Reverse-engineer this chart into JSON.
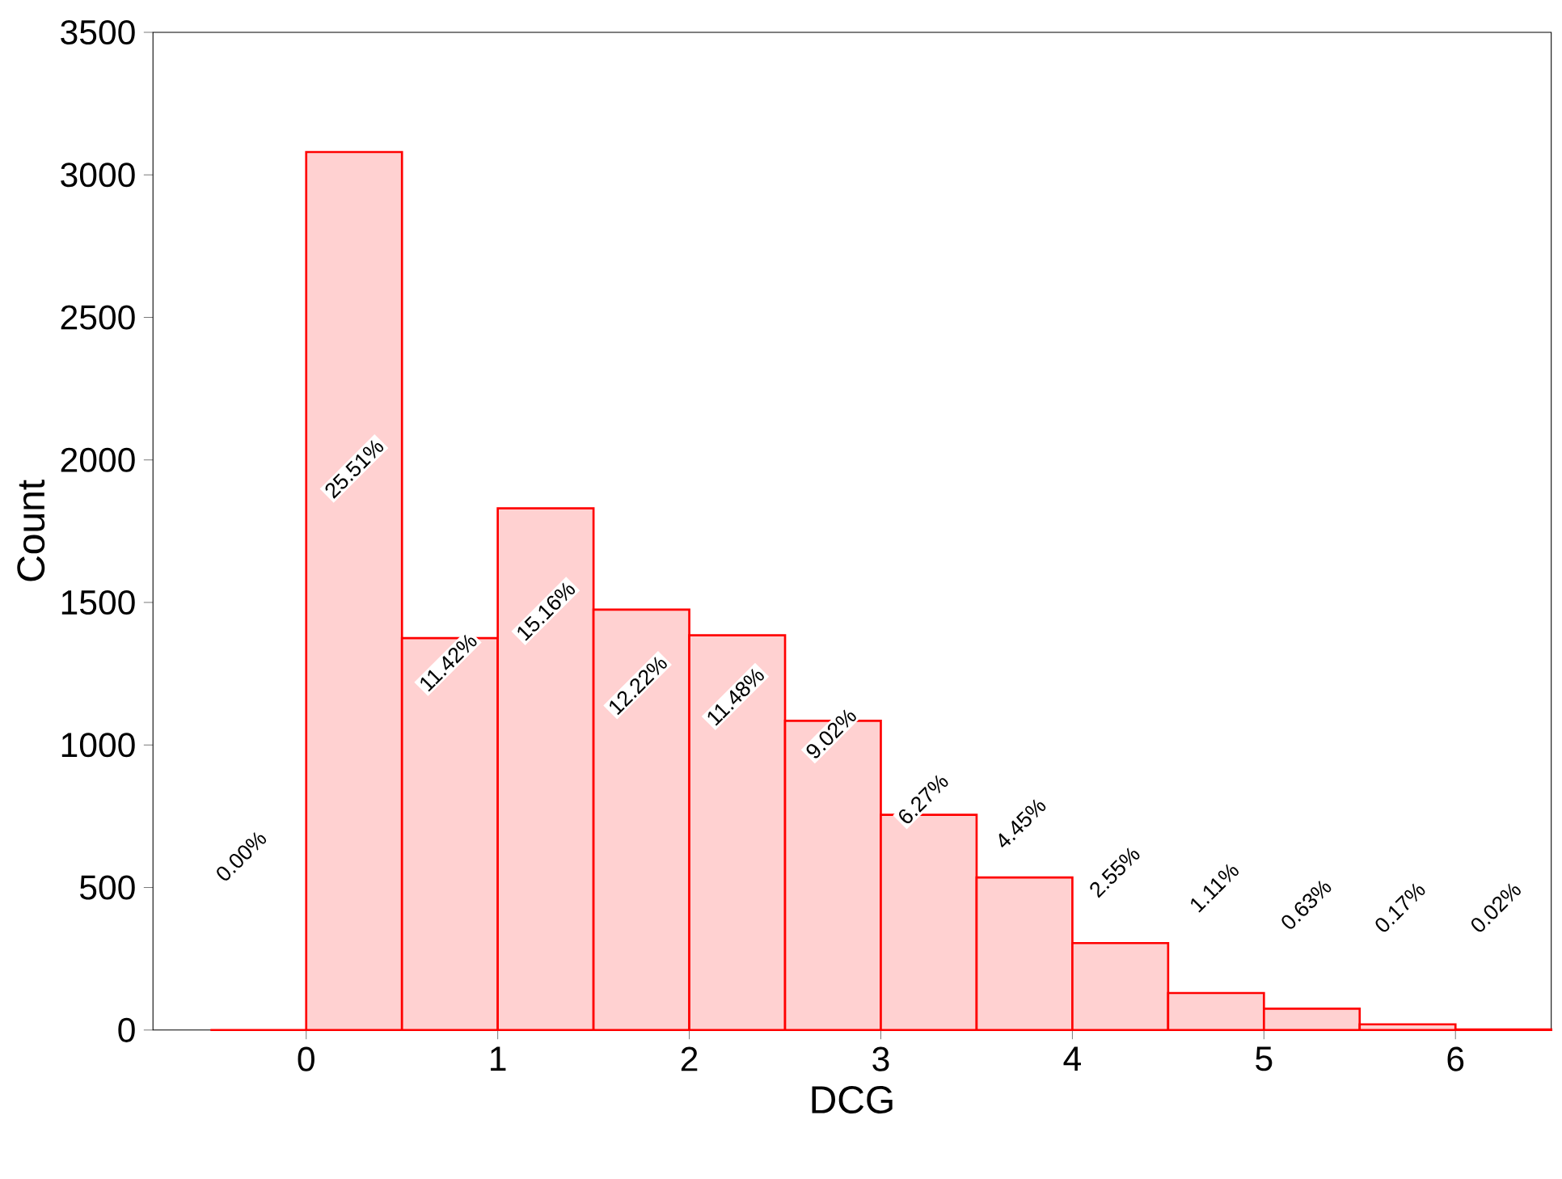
{
  "chart_data": {
    "type": "histogram",
    "xlabel": "DCG",
    "ylabel": "Count",
    "bins": [
      -0.5,
      0,
      0.5,
      1,
      1.5,
      2,
      2.5,
      3,
      3.5,
      4,
      4.5,
      5,
      5.5,
      6,
      6.5
    ],
    "values": [
      0,
      3080,
      1375,
      1830,
      1475,
      1385,
      1085,
      755,
      535,
      305,
      130,
      75,
      20,
      2
    ],
    "annotations": [
      {
        "text": "0.00%",
        "x": -0.34,
        "y": 610
      },
      {
        "text": "25.51%",
        "x": 0.25,
        "y": 1970
      },
      {
        "text": "11.42%",
        "x": 0.74,
        "y": 1290
      },
      {
        "text": "15.16%",
        "x": 1.25,
        "y": 1470
      },
      {
        "text": "12.22%",
        "x": 1.73,
        "y": 1210
      },
      {
        "text": "11.48%",
        "x": 2.24,
        "y": 1170
      },
      {
        "text": "9.02%",
        "x": 2.74,
        "y": 1040
      },
      {
        "text": "6.27%",
        "x": 3.22,
        "y": 810
      },
      {
        "text": "4.45%",
        "x": 3.73,
        "y": 725
      },
      {
        "text": "2.55%",
        "x": 4.22,
        "y": 555
      },
      {
        "text": "1.11%",
        "x": 4.74,
        "y": 500
      },
      {
        "text": "0.63%",
        "x": 5.22,
        "y": 440
      },
      {
        "text": "0.17%",
        "x": 5.71,
        "y": 430
      },
      {
        "text": "0.02%",
        "x": 6.21,
        "y": 430
      }
    ],
    "color": "#ff0000",
    "xlim": [
      -0.8,
      6.5
    ],
    "ylim": [
      0,
      3500
    ],
    "xticks": [
      0,
      1,
      2,
      3,
      4,
      5,
      6
    ],
    "yticks": [
      0,
      500,
      1000,
      1500,
      2000,
      2500,
      3000,
      3500
    ],
    "grid": false
  }
}
